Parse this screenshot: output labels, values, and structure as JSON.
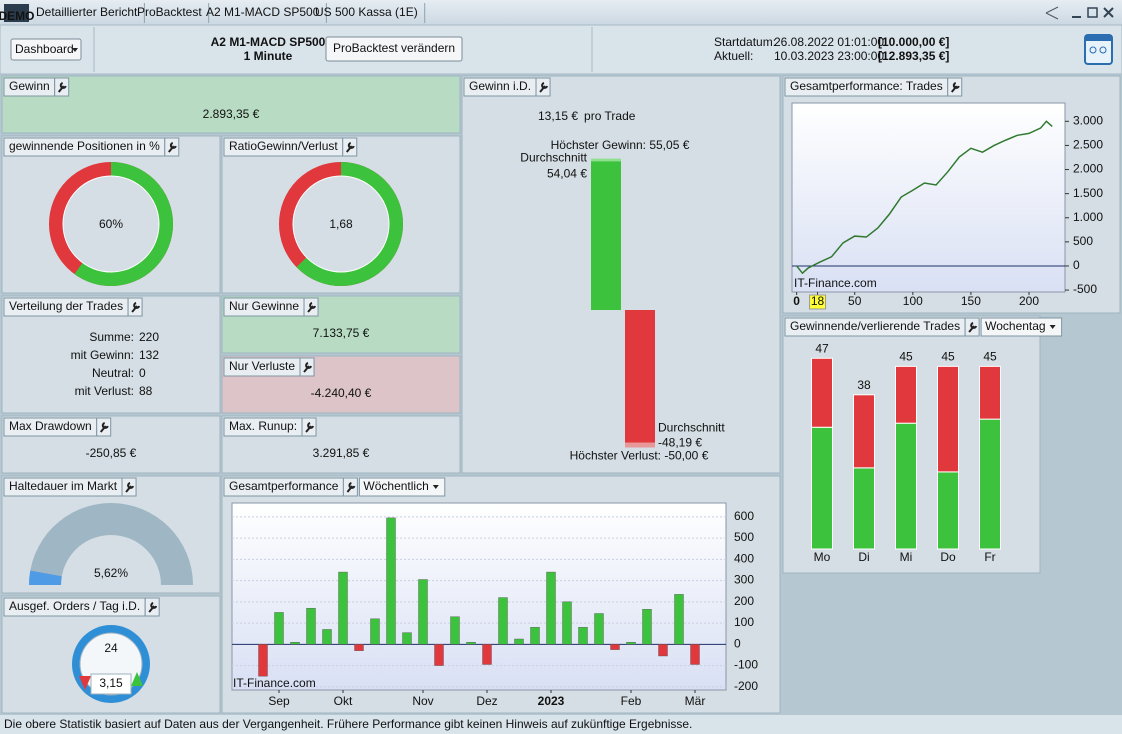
{
  "window": {
    "tabs": [
      "Detaillierter Bericht",
      "ProBacktest",
      "A2 M1-MACD SP500",
      "US 500 Kassa (1E)"
    ],
    "logo": "DEMO"
  },
  "toolbar": {
    "dashboard": "Dashboard",
    "system": "A2 M1-MACD SP500",
    "timeframe": "1 Minute",
    "button": "ProBacktest verändern",
    "start_label": "Startdatum:",
    "start_date": "26.08.2022 01:01:00",
    "start_capital": "[10.000,00 €]",
    "current_label": "Aktuell:",
    "current_date": "10.03.2023 23:00:00",
    "current_capital": "[12.893,35 €]"
  },
  "panels": {
    "gewinn": {
      "title": "Gewinn",
      "value": "2.893,35 €"
    },
    "win_pct": {
      "title": "gewinnende Positionen in %",
      "value": 60,
      "value_label": "60%"
    },
    "ratio": {
      "title": "RatioGewinn/Verlust",
      "value": 1.68,
      "value_label": "1,68"
    },
    "distribution": {
      "title": "Verteilung der Trades",
      "lines": [
        {
          "label": "Summe:",
          "value": "220",
          "color": "#111111"
        },
        {
          "label": "mit Gewinn:",
          "value": "132",
          "color": "#2e9a2e"
        },
        {
          "label": "Neutral:",
          "value": "0",
          "color": "#111111"
        },
        {
          "label": "mit Verlust:",
          "value": "88",
          "color": "#c0262a"
        }
      ]
    },
    "only_gains": {
      "title": "Nur Gewinne",
      "value": "7.133,75 €"
    },
    "only_losses": {
      "title": "Nur Verluste",
      "value": "-4.240,40 €"
    },
    "max_drawdown": {
      "title": "Max Drawdown",
      "value": "-250,85 €"
    },
    "max_runup": {
      "title": "Max. Runup:",
      "value": "3.291,85 €"
    },
    "holding": {
      "title": "Haltedauer im Markt",
      "value": 5.62,
      "value_label": "5,62%"
    },
    "orders": {
      "title": "Ausgef. Orders / Tag i.D.",
      "clock_label": "24",
      "value_label": "3,15"
    }
  },
  "gewinn_id": {
    "title": "Gewinn i.D.",
    "value": "13,15 €",
    "unit": "pro Trade",
    "max_gain": {
      "label": "Höchster Gewinn: 55,05 €",
      "value": 55.05
    },
    "avg_gain": {
      "caption": "Durchschnitt",
      "label": "54,04 €",
      "value": 54.04
    },
    "avg_loss": {
      "caption": "Durchschnitt",
      "label": "-48,19 €",
      "value": -48.19
    },
    "max_loss": {
      "label": "Höchster Verlust: -50,00 €",
      "value": -50
    }
  },
  "chart_data": [
    {
      "type": "line",
      "title": "Gesamtperformance: Trades",
      "watermark": "IT-Finance.com",
      "x": [
        0,
        5,
        10,
        20,
        30,
        40,
        50,
        60,
        70,
        80,
        90,
        100,
        110,
        120,
        130,
        140,
        150,
        160,
        170,
        180,
        190,
        200,
        210,
        215,
        220
      ],
      "series": [
        {
          "color": "#2f7a2f",
          "values": [
            0,
            -150,
            -40,
            80,
            190,
            480,
            620,
            600,
            790,
            1080,
            1430,
            1570,
            1720,
            1680,
            1950,
            2260,
            2440,
            2360,
            2500,
            2610,
            2710,
            2750,
            2860,
            3000,
            2893
          ]
        }
      ],
      "xlim": [
        -4,
        231
      ],
      "ylim": [
        -540,
        3380
      ],
      "xticks": [
        0,
        {
          "value": 18,
          "label": "18",
          "highlight": "#ffff33"
        },
        50,
        100,
        150,
        200
      ],
      "yticks": [
        -500,
        0,
        500,
        {
          "value": 1000,
          "label": "1.000"
        },
        {
          "value": 1500,
          "label": "1.500"
        },
        {
          "value": 2000,
          "label": "2.000"
        },
        {
          "value": 2500,
          "label": "2.500"
        },
        {
          "value": 3000,
          "label": "3.000"
        }
      ]
    },
    {
      "type": "bar",
      "title": "Gesamtperformance",
      "period": "Wöchentlich",
      "watermark": "IT-Finance.com",
      "categories": [
        null,
        "Sep",
        null,
        null,
        null,
        "Okt",
        null,
        null,
        null,
        null,
        "Nov",
        null,
        null,
        null,
        "Dez",
        null,
        null,
        null,
        "2023",
        null,
        null,
        null,
        null,
        "Feb",
        null,
        null,
        null,
        "Mär"
      ],
      "values": [
        -150,
        150,
        10,
        170,
        70,
        340,
        -30,
        120,
        595,
        55,
        305,
        -100,
        130,
        10,
        -95,
        220,
        25,
        80,
        340,
        200,
        80,
        145,
        -25,
        10,
        165,
        -55,
        235,
        -95
      ],
      "colors": {
        "positive": "#3cc23c",
        "negative": "#e0383c"
      },
      "ylim": [
        -215,
        665
      ],
      "yticks": [
        -200,
        -100,
        0,
        100,
        200,
        300,
        400,
        500,
        600
      ],
      "grid": true
    },
    {
      "type": "stacked_bar",
      "title": "Gewinnende/verlierende Trades",
      "period": "Wochentag",
      "categories": [
        "Mo",
        "Di",
        "Mi",
        "Do",
        "Fr"
      ],
      "series": [
        {
          "color": "#3cc23c",
          "values": [
            30,
            20,
            31,
            19,
            32
          ]
        },
        {
          "color": "#e0383c",
          "values": [
            17,
            18,
            14,
            26,
            13
          ]
        }
      ],
      "totals": [
        47,
        38,
        45,
        45,
        45
      ],
      "ylim": [
        0,
        51.5
      ]
    }
  ],
  "footer": "Die obere Statistik basiert auf Daten aus der Vergangenheit. Frühere Performance gibt keinen Hinweis auf zukünftige Ergebnisse."
}
